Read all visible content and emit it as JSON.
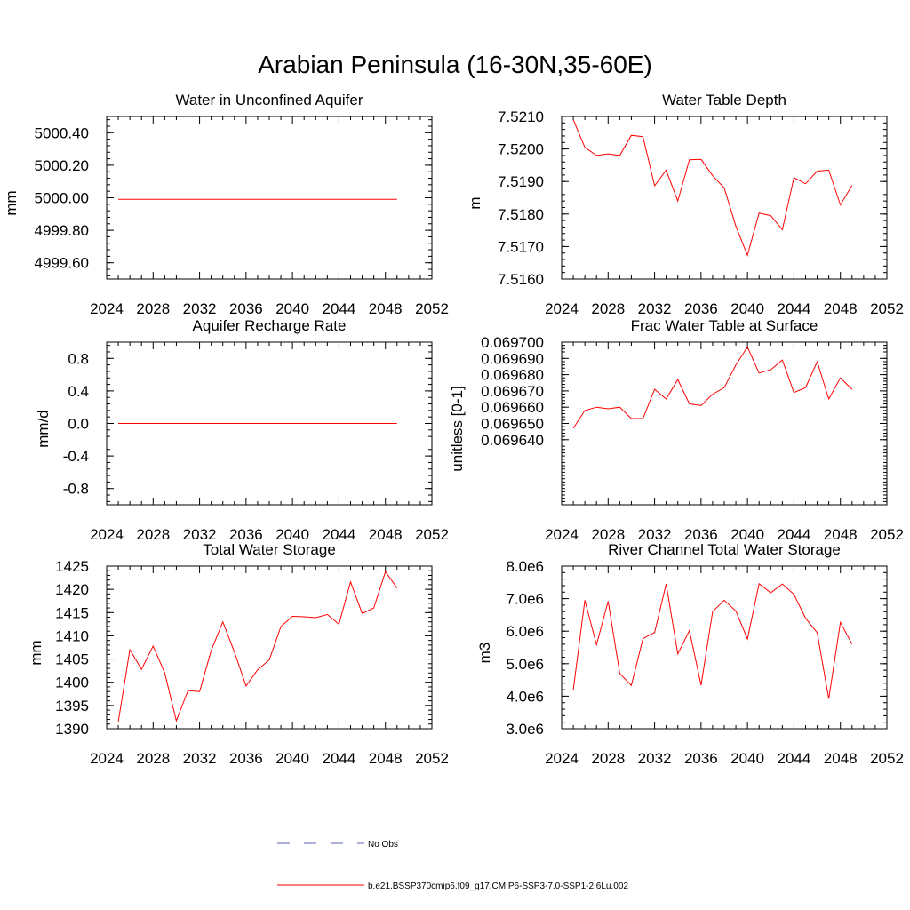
{
  "figure": {
    "title": "Arabian Peninsula (16-30N,35-60E)"
  },
  "legend": {
    "placement": "bottom",
    "entries": [
      {
        "label": "No Obs",
        "color": "#5560b0",
        "dashed": true
      },
      {
        "label": "b.e21.BSSP370cmip6.f09_g17.CMIP6-SSP3-7.0-SSP1-2.6Lu.002",
        "color": "#ff0000",
        "dashed": false
      }
    ]
  },
  "chart_data": [
    {
      "id": "water-unconfined-aquifer",
      "type": "line",
      "title": "Water in Unconfined Aquifer",
      "xlabel": "",
      "ylabel": "mm",
      "xlim": [
        2024,
        2052
      ],
      "ylim": [
        4999.5,
        5000.5
      ],
      "xticks": [
        "2024",
        "2028",
        "2032",
        "2036",
        "2040",
        "2044",
        "2048",
        "2052"
      ],
      "yticks": [
        "4999.60",
        "4999.80",
        "5000.00",
        "5000.20",
        "5000.40"
      ],
      "ytick_values": [
        4999.6,
        4999.8,
        5000.0,
        5000.2,
        5000.4
      ],
      "x": [
        2025,
        2026,
        2027,
        2028,
        2029,
        2030,
        2031,
        2032,
        2033,
        2034,
        2035,
        2036,
        2037,
        2038,
        2039,
        2040,
        2041,
        2042,
        2043,
        2044,
        2045,
        2046,
        2047,
        2048,
        2049
      ],
      "values": [
        4999.99,
        4999.99,
        4999.99,
        4999.99,
        4999.99,
        4999.99,
        4999.99,
        4999.99,
        4999.99,
        4999.99,
        4999.99,
        4999.99,
        4999.99,
        4999.99,
        4999.99,
        4999.99,
        4999.99,
        4999.99,
        4999.99,
        4999.99,
        4999.99,
        4999.99,
        4999.99,
        4999.99,
        4999.99
      ],
      "color": "#ff0000"
    },
    {
      "id": "water-table-depth",
      "type": "line",
      "title": "Water Table Depth",
      "xlabel": "",
      "ylabel": "m",
      "xlim": [
        2024,
        2052
      ],
      "ylim": [
        7.516,
        7.521
      ],
      "xticks": [
        "2024",
        "2028",
        "2032",
        "2036",
        "2040",
        "2044",
        "2048",
        "2052"
      ],
      "yticks": [
        "7.5160",
        "7.5170",
        "7.5180",
        "7.5190",
        "7.5200",
        "7.5210"
      ],
      "ytick_values": [
        7.516,
        7.517,
        7.518,
        7.519,
        7.52,
        7.521
      ],
      "x": [
        2025,
        2026,
        2027,
        2028,
        2029,
        2030,
        2031,
        2032,
        2033,
        2034,
        2035,
        2036,
        2037,
        2038,
        2039,
        2040,
        2041,
        2042,
        2043,
        2044,
        2045,
        2046,
        2047,
        2048,
        2049
      ],
      "values": [
        7.5209,
        7.52005,
        7.5198,
        7.51985,
        7.5198,
        7.52042,
        7.52038,
        7.51887,
        7.51935,
        7.5184,
        7.51967,
        7.51968,
        7.51918,
        7.5188,
        7.51762,
        7.51673,
        7.51803,
        7.51795,
        7.51752,
        7.51912,
        7.51893,
        7.51932,
        7.51935,
        7.51828,
        7.51888
      ],
      "color": "#ff0000"
    },
    {
      "id": "aquifer-recharge-rate",
      "type": "line",
      "title": "Aquifer Recharge Rate",
      "xlabel": "",
      "ylabel": "mm/d",
      "xlim": [
        2024,
        2052
      ],
      "ylim": [
        -1.0,
        1.0
      ],
      "xticks": [
        "2024",
        "2028",
        "2032",
        "2036",
        "2040",
        "2044",
        "2048",
        "2052"
      ],
      "yticks": [
        "-0.8",
        "-0.4",
        "0.0",
        "0.4",
        "0.8"
      ],
      "ytick_values": [
        -0.8,
        -0.4,
        0.0,
        0.4,
        0.8
      ],
      "x": [
        2025,
        2026,
        2027,
        2028,
        2029,
        2030,
        2031,
        2032,
        2033,
        2034,
        2035,
        2036,
        2037,
        2038,
        2039,
        2040,
        2041,
        2042,
        2043,
        2044,
        2045,
        2046,
        2047,
        2048,
        2049
      ],
      "values": [
        0,
        0,
        0,
        0,
        0,
        0,
        0,
        0,
        0,
        0,
        0,
        0,
        0,
        0,
        0,
        0,
        0,
        0,
        0,
        0,
        0,
        0,
        0,
        0,
        0
      ],
      "color": "#ff0000"
    },
    {
      "id": "frac-water-table-surface",
      "type": "line",
      "title": "Frac Water Table at Surface",
      "xlabel": "",
      "ylabel": "unitless [0-1]",
      "xlim": [
        2024,
        2052
      ],
      "ylim": [
        0.0696,
        0.0697
      ],
      "xticks": [
        "2024",
        "2028",
        "2032",
        "2036",
        "2040",
        "2044",
        "2048",
        "2052"
      ],
      "yticks": [
        "0.069640",
        "0.069650",
        "0.069660",
        "0.069670",
        "0.069680",
        "0.069690",
        "0.069700"
      ],
      "ytick_values": [
        0.06964,
        0.06965,
        0.06966,
        0.06967,
        0.06968,
        0.06969,
        0.0697
      ],
      "x": [
        2025,
        2026,
        2027,
        2028,
        2029,
        2030,
        2031,
        2032,
        2033,
        2034,
        2035,
        2036,
        2037,
        2038,
        2039,
        2040,
        2041,
        2042,
        2043,
        2044,
        2045,
        2046,
        2047,
        2048,
        2049
      ],
      "values": [
        0.069647,
        0.069658,
        0.06966,
        0.069659,
        0.06966,
        0.069653,
        0.069653,
        0.069671,
        0.069665,
        0.069677,
        0.069662,
        0.069661,
        0.069668,
        0.069672,
        0.069686,
        0.069697,
        0.069681,
        0.069683,
        0.069689,
        0.069669,
        0.069672,
        0.069688,
        0.069665,
        0.069678,
        0.069671
      ],
      "color": "#ff0000"
    },
    {
      "id": "total-water-storage",
      "type": "line",
      "title": "Total Water Storage",
      "xlabel": "",
      "ylabel": "mm",
      "xlim": [
        2024,
        2052
      ],
      "ylim": [
        1390,
        1425
      ],
      "xticks": [
        "2024",
        "2028",
        "2032",
        "2036",
        "2040",
        "2044",
        "2048",
        "2052"
      ],
      "yticks": [
        "1390",
        "1395",
        "1400",
        "1405",
        "1410",
        "1415",
        "1420",
        "1425"
      ],
      "ytick_values": [
        1390,
        1395,
        1400,
        1405,
        1410,
        1415,
        1420,
        1425
      ],
      "x": [
        2025,
        2026,
        2027,
        2028,
        2029,
        2030,
        2031,
        2032,
        2033,
        2034,
        2035,
        2036,
        2037,
        2038,
        2039,
        2040,
        2041,
        2042,
        2043,
        2044,
        2045,
        2046,
        2047,
        2048,
        2049
      ],
      "values": [
        1391.5,
        1407,
        1402.8,
        1407.8,
        1402,
        1391.7,
        1398.2,
        1398,
        1406.8,
        1413,
        1406.5,
        1399.2,
        1402.7,
        1404.8,
        1412,
        1414.2,
        1414.1,
        1413.9,
        1414.6,
        1412.5,
        1421.6,
        1414.8,
        1416,
        1423.8,
        1420.3
      ],
      "color": "#ff0000"
    },
    {
      "id": "river-channel-storage",
      "type": "line",
      "title": "River Channel Total Water Storage",
      "xlabel": "",
      "ylabel": "m3",
      "xlim": [
        2024,
        2052
      ],
      "ylim": [
        3000000,
        8000000
      ],
      "xticks": [
        "2024",
        "2028",
        "2032",
        "2036",
        "2040",
        "2044",
        "2048",
        "2052"
      ],
      "yticks": [
        "3.0e6",
        "4.0e6",
        "5.0e6",
        "6.0e6",
        "7.0e6",
        "8.0e6"
      ],
      "ytick_values": [
        3000000,
        4000000,
        5000000,
        6000000,
        7000000,
        8000000
      ],
      "x": [
        2025,
        2026,
        2027,
        2028,
        2029,
        2030,
        2031,
        2032,
        2033,
        2034,
        2035,
        2036,
        2037,
        2038,
        2039,
        2040,
        2041,
        2042,
        2043,
        2044,
        2045,
        2046,
        2047,
        2048,
        2049
      ],
      "values": [
        4200000,
        6950000,
        5580000,
        6920000,
        4700000,
        4330000,
        5770000,
        5960000,
        7450000,
        5300000,
        6020000,
        4340000,
        6600000,
        6950000,
        6620000,
        5760000,
        7460000,
        7180000,
        7450000,
        7130000,
        6400000,
        5950000,
        3920000,
        6270000,
        5600000
      ],
      "color": "#ff0000"
    }
  ]
}
